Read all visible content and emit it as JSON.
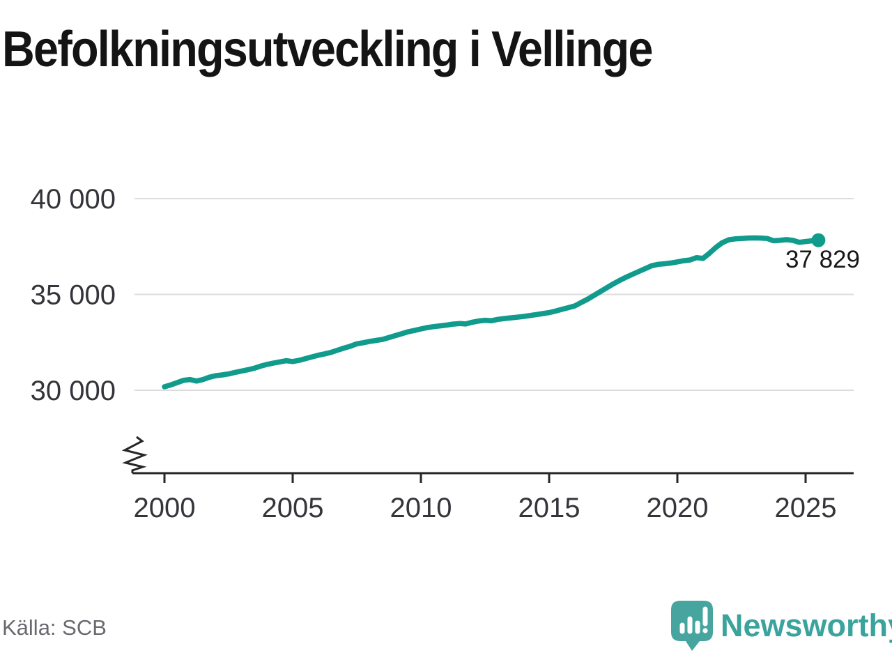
{
  "title": "Befolkningsutveckling i Vellinge",
  "source_label": "Källa: SCB",
  "branding": {
    "name": "Newsworthy",
    "icon": "newsworthy-speech-bubble-chart-icon"
  },
  "colors": {
    "line": "#119b8d",
    "grid": "#dcdcdd",
    "axis": "#262626",
    "tick_label": "#34343a",
    "title": "#141414",
    "source": "#68686f",
    "end_label": "#18181a",
    "brand_mark": "#47a5a0",
    "brand_text": "#3aa39c"
  },
  "chart_data": {
    "type": "line",
    "title": "Befolkningsutveckling i Vellinge",
    "xlabel": "",
    "ylabel": "",
    "legend": "none",
    "grid": "horizontal",
    "y_axis": {
      "range": [
        30000,
        40000
      ],
      "axis_break_at_bottom": true,
      "ticks": [
        {
          "value": 30000,
          "label": "30 000"
        },
        {
          "value": 35000,
          "label": "35 000"
        },
        {
          "value": 40000,
          "label": "40 000"
        }
      ]
    },
    "x_axis": {
      "range_years": [
        1998.8,
        2026.9
      ],
      "ticks": [
        2000,
        2005,
        2010,
        2015,
        2020,
        2025
      ]
    },
    "end_label": "37 829",
    "last_value": 37829,
    "points": [
      [
        2000.0,
        30180
      ],
      [
        2000.25,
        30280
      ],
      [
        2000.5,
        30400
      ],
      [
        2000.75,
        30520
      ],
      [
        2001.0,
        30560
      ],
      [
        2001.25,
        30480
      ],
      [
        2001.5,
        30560
      ],
      [
        2001.75,
        30680
      ],
      [
        2002.0,
        30760
      ],
      [
        2002.25,
        30800
      ],
      [
        2002.5,
        30850
      ],
      [
        2002.75,
        30930
      ],
      [
        2003.0,
        31000
      ],
      [
        2003.25,
        31070
      ],
      [
        2003.5,
        31150
      ],
      [
        2003.75,
        31260
      ],
      [
        2004.0,
        31350
      ],
      [
        2004.25,
        31420
      ],
      [
        2004.5,
        31480
      ],
      [
        2004.75,
        31540
      ],
      [
        2005.0,
        31500
      ],
      [
        2005.25,
        31560
      ],
      [
        2005.5,
        31650
      ],
      [
        2005.75,
        31740
      ],
      [
        2006.0,
        31830
      ],
      [
        2006.25,
        31900
      ],
      [
        2006.5,
        31980
      ],
      [
        2006.75,
        32090
      ],
      [
        2007.0,
        32200
      ],
      [
        2007.25,
        32300
      ],
      [
        2007.5,
        32420
      ],
      [
        2007.75,
        32480
      ],
      [
        2008.0,
        32550
      ],
      [
        2008.25,
        32600
      ],
      [
        2008.5,
        32650
      ],
      [
        2008.75,
        32750
      ],
      [
        2009.0,
        32850
      ],
      [
        2009.25,
        32950
      ],
      [
        2009.5,
        33050
      ],
      [
        2009.75,
        33120
      ],
      [
        2010.0,
        33200
      ],
      [
        2010.25,
        33270
      ],
      [
        2010.5,
        33320
      ],
      [
        2010.75,
        33360
      ],
      [
        2011.0,
        33400
      ],
      [
        2011.25,
        33450
      ],
      [
        2011.5,
        33480
      ],
      [
        2011.75,
        33460
      ],
      [
        2012.0,
        33550
      ],
      [
        2012.25,
        33610
      ],
      [
        2012.5,
        33650
      ],
      [
        2012.75,
        33630
      ],
      [
        2013.0,
        33700
      ],
      [
        2013.25,
        33740
      ],
      [
        2013.5,
        33780
      ],
      [
        2013.75,
        33810
      ],
      [
        2014.0,
        33850
      ],
      [
        2014.25,
        33900
      ],
      [
        2014.5,
        33950
      ],
      [
        2014.75,
        34000
      ],
      [
        2015.0,
        34050
      ],
      [
        2015.25,
        34130
      ],
      [
        2015.5,
        34220
      ],
      [
        2015.75,
        34310
      ],
      [
        2016.0,
        34400
      ],
      [
        2016.25,
        34580
      ],
      [
        2016.5,
        34750
      ],
      [
        2016.75,
        34950
      ],
      [
        2017.0,
        35150
      ],
      [
        2017.25,
        35350
      ],
      [
        2017.5,
        35550
      ],
      [
        2017.75,
        35730
      ],
      [
        2018.0,
        35900
      ],
      [
        2018.25,
        36050
      ],
      [
        2018.5,
        36200
      ],
      [
        2018.75,
        36350
      ],
      [
        2019.0,
        36500
      ],
      [
        2019.25,
        36570
      ],
      [
        2019.5,
        36600
      ],
      [
        2019.75,
        36640
      ],
      [
        2020.0,
        36700
      ],
      [
        2020.25,
        36760
      ],
      [
        2020.5,
        36800
      ],
      [
        2020.75,
        36920
      ],
      [
        2021.0,
        36880
      ],
      [
        2021.25,
        37150
      ],
      [
        2021.5,
        37450
      ],
      [
        2021.75,
        37700
      ],
      [
        2022.0,
        37850
      ],
      [
        2022.25,
        37900
      ],
      [
        2022.5,
        37920
      ],
      [
        2022.75,
        37940
      ],
      [
        2023.0,
        37950
      ],
      [
        2023.25,
        37940
      ],
      [
        2023.5,
        37920
      ],
      [
        2023.75,
        37800
      ],
      [
        2024.0,
        37820
      ],
      [
        2024.25,
        37860
      ],
      [
        2024.5,
        37820
      ],
      [
        2024.75,
        37720
      ],
      [
        2025.0,
        37760
      ],
      [
        2025.25,
        37800
      ],
      [
        2025.5,
        37829
      ]
    ]
  }
}
